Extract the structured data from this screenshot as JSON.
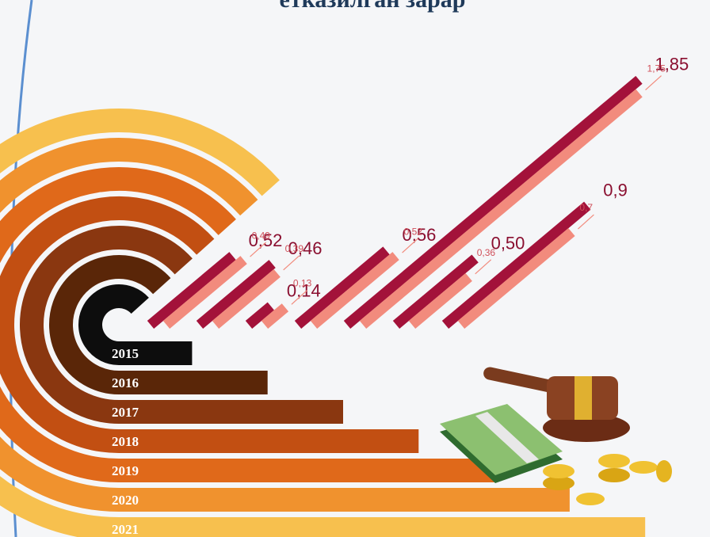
{
  "chart_data": {
    "type": "diagonal-bar",
    "title": "етказилган зарар",
    "categories": [
      "2015",
      "2016",
      "2017",
      "2018",
      "2019",
      "2020",
      "2021"
    ],
    "series": [
      {
        "color": "#a3123a",
        "values": [
          0.52,
          0.46,
          0.14,
          0.56,
          1.85,
          0.5,
          0.9
        ],
        "value_labels": [
          "0,52",
          "0,46",
          "0,14",
          "0,56",
          "1,85",
          "0,50",
          "0,9"
        ]
      },
      {
        "color": "#f28b7d",
        "values": [
          0.49,
          0.39,
          0.13,
          0.52,
          1.75,
          0.36,
          0.7
        ],
        "value_labels": [
          "0,49",
          "0,39",
          "0,13",
          "0,52",
          "1,75",
          "0,36",
          "0,7"
        ]
      }
    ],
    "band_colors": [
      "#0d0d0d",
      "#5a2608",
      "#8a3710",
      "#c24f12",
      "#e0691a",
      "#f0922e",
      "#f7c04e"
    ]
  }
}
